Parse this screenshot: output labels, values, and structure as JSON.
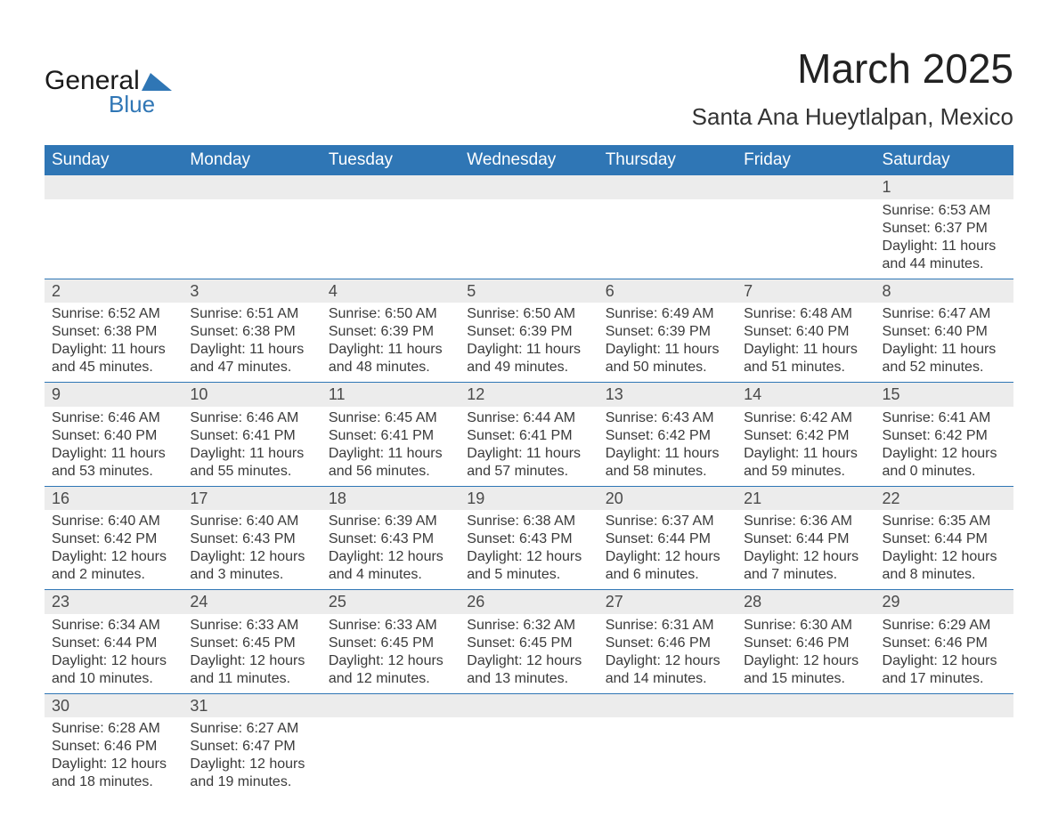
{
  "logo": {
    "line1": "General",
    "line2": "Blue",
    "icon_color": "#2f76b5"
  },
  "title": "March 2025",
  "location": "Santa Ana Hueytlalpan, Mexico",
  "header_bg": "#2f76b5",
  "header_fg": "#ffffff",
  "daynum_bg": "#ececec",
  "divider_color": "#2f76b5",
  "text_color": "#3a3a3a",
  "day_headers": [
    "Sunday",
    "Monday",
    "Tuesday",
    "Wednesday",
    "Thursday",
    "Friday",
    "Saturday"
  ],
  "weeks": [
    [
      null,
      null,
      null,
      null,
      null,
      null,
      {
        "n": "1",
        "sunrise": "Sunrise: 6:53 AM",
        "sunset": "Sunset: 6:37 PM",
        "dl1": "Daylight: 11 hours",
        "dl2": "and 44 minutes."
      }
    ],
    [
      {
        "n": "2",
        "sunrise": "Sunrise: 6:52 AM",
        "sunset": "Sunset: 6:38 PM",
        "dl1": "Daylight: 11 hours",
        "dl2": "and 45 minutes."
      },
      {
        "n": "3",
        "sunrise": "Sunrise: 6:51 AM",
        "sunset": "Sunset: 6:38 PM",
        "dl1": "Daylight: 11 hours",
        "dl2": "and 47 minutes."
      },
      {
        "n": "4",
        "sunrise": "Sunrise: 6:50 AM",
        "sunset": "Sunset: 6:39 PM",
        "dl1": "Daylight: 11 hours",
        "dl2": "and 48 minutes."
      },
      {
        "n": "5",
        "sunrise": "Sunrise: 6:50 AM",
        "sunset": "Sunset: 6:39 PM",
        "dl1": "Daylight: 11 hours",
        "dl2": "and 49 minutes."
      },
      {
        "n": "6",
        "sunrise": "Sunrise: 6:49 AM",
        "sunset": "Sunset: 6:39 PM",
        "dl1": "Daylight: 11 hours",
        "dl2": "and 50 minutes."
      },
      {
        "n": "7",
        "sunrise": "Sunrise: 6:48 AM",
        "sunset": "Sunset: 6:40 PM",
        "dl1": "Daylight: 11 hours",
        "dl2": "and 51 minutes."
      },
      {
        "n": "8",
        "sunrise": "Sunrise: 6:47 AM",
        "sunset": "Sunset: 6:40 PM",
        "dl1": "Daylight: 11 hours",
        "dl2": "and 52 minutes."
      }
    ],
    [
      {
        "n": "9",
        "sunrise": "Sunrise: 6:46 AM",
        "sunset": "Sunset: 6:40 PM",
        "dl1": "Daylight: 11 hours",
        "dl2": "and 53 minutes."
      },
      {
        "n": "10",
        "sunrise": "Sunrise: 6:46 AM",
        "sunset": "Sunset: 6:41 PM",
        "dl1": "Daylight: 11 hours",
        "dl2": "and 55 minutes."
      },
      {
        "n": "11",
        "sunrise": "Sunrise: 6:45 AM",
        "sunset": "Sunset: 6:41 PM",
        "dl1": "Daylight: 11 hours",
        "dl2": "and 56 minutes."
      },
      {
        "n": "12",
        "sunrise": "Sunrise: 6:44 AM",
        "sunset": "Sunset: 6:41 PM",
        "dl1": "Daylight: 11 hours",
        "dl2": "and 57 minutes."
      },
      {
        "n": "13",
        "sunrise": "Sunrise: 6:43 AM",
        "sunset": "Sunset: 6:42 PM",
        "dl1": "Daylight: 11 hours",
        "dl2": "and 58 minutes."
      },
      {
        "n": "14",
        "sunrise": "Sunrise: 6:42 AM",
        "sunset": "Sunset: 6:42 PM",
        "dl1": "Daylight: 11 hours",
        "dl2": "and 59 minutes."
      },
      {
        "n": "15",
        "sunrise": "Sunrise: 6:41 AM",
        "sunset": "Sunset: 6:42 PM",
        "dl1": "Daylight: 12 hours",
        "dl2": "and 0 minutes."
      }
    ],
    [
      {
        "n": "16",
        "sunrise": "Sunrise: 6:40 AM",
        "sunset": "Sunset: 6:42 PM",
        "dl1": "Daylight: 12 hours",
        "dl2": "and 2 minutes."
      },
      {
        "n": "17",
        "sunrise": "Sunrise: 6:40 AM",
        "sunset": "Sunset: 6:43 PM",
        "dl1": "Daylight: 12 hours",
        "dl2": "and 3 minutes."
      },
      {
        "n": "18",
        "sunrise": "Sunrise: 6:39 AM",
        "sunset": "Sunset: 6:43 PM",
        "dl1": "Daylight: 12 hours",
        "dl2": "and 4 minutes."
      },
      {
        "n": "19",
        "sunrise": "Sunrise: 6:38 AM",
        "sunset": "Sunset: 6:43 PM",
        "dl1": "Daylight: 12 hours",
        "dl2": "and 5 minutes."
      },
      {
        "n": "20",
        "sunrise": "Sunrise: 6:37 AM",
        "sunset": "Sunset: 6:44 PM",
        "dl1": "Daylight: 12 hours",
        "dl2": "and 6 minutes."
      },
      {
        "n": "21",
        "sunrise": "Sunrise: 6:36 AM",
        "sunset": "Sunset: 6:44 PM",
        "dl1": "Daylight: 12 hours",
        "dl2": "and 7 minutes."
      },
      {
        "n": "22",
        "sunrise": "Sunrise: 6:35 AM",
        "sunset": "Sunset: 6:44 PM",
        "dl1": "Daylight: 12 hours",
        "dl2": "and 8 minutes."
      }
    ],
    [
      {
        "n": "23",
        "sunrise": "Sunrise: 6:34 AM",
        "sunset": "Sunset: 6:44 PM",
        "dl1": "Daylight: 12 hours",
        "dl2": "and 10 minutes."
      },
      {
        "n": "24",
        "sunrise": "Sunrise: 6:33 AM",
        "sunset": "Sunset: 6:45 PM",
        "dl1": "Daylight: 12 hours",
        "dl2": "and 11 minutes."
      },
      {
        "n": "25",
        "sunrise": "Sunrise: 6:33 AM",
        "sunset": "Sunset: 6:45 PM",
        "dl1": "Daylight: 12 hours",
        "dl2": "and 12 minutes."
      },
      {
        "n": "26",
        "sunrise": "Sunrise: 6:32 AM",
        "sunset": "Sunset: 6:45 PM",
        "dl1": "Daylight: 12 hours",
        "dl2": "and 13 minutes."
      },
      {
        "n": "27",
        "sunrise": "Sunrise: 6:31 AM",
        "sunset": "Sunset: 6:46 PM",
        "dl1": "Daylight: 12 hours",
        "dl2": "and 14 minutes."
      },
      {
        "n": "28",
        "sunrise": "Sunrise: 6:30 AM",
        "sunset": "Sunset: 6:46 PM",
        "dl1": "Daylight: 12 hours",
        "dl2": "and 15 minutes."
      },
      {
        "n": "29",
        "sunrise": "Sunrise: 6:29 AM",
        "sunset": "Sunset: 6:46 PM",
        "dl1": "Daylight: 12 hours",
        "dl2": "and 17 minutes."
      }
    ],
    [
      {
        "n": "30",
        "sunrise": "Sunrise: 6:28 AM",
        "sunset": "Sunset: 6:46 PM",
        "dl1": "Daylight: 12 hours",
        "dl2": "and 18 minutes."
      },
      {
        "n": "31",
        "sunrise": "Sunrise: 6:27 AM",
        "sunset": "Sunset: 6:47 PM",
        "dl1": "Daylight: 12 hours",
        "dl2": "and 19 minutes."
      },
      null,
      null,
      null,
      null,
      null
    ]
  ]
}
